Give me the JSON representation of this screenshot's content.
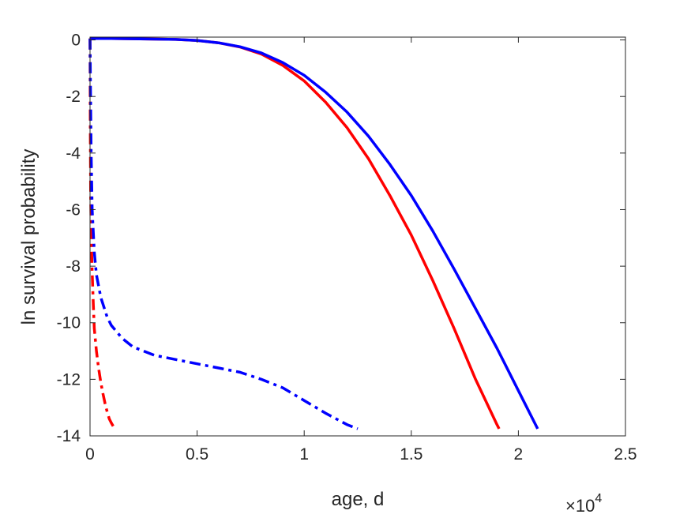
{
  "chart_data": {
    "type": "line",
    "title": "",
    "xlabel": "age, d",
    "ylabel": "ln survival probability",
    "x_exponent_label": {
      "base": "×10",
      "power": "4"
    },
    "xlim": [
      0,
      2.5
    ],
    "ylim": [
      -14,
      0.1
    ],
    "xticks": [
      0,
      0.5,
      1,
      1.5,
      2,
      2.5
    ],
    "yticks": [
      0,
      -2,
      -4,
      -6,
      -8,
      -10,
      -12,
      -14
    ],
    "grid": false,
    "legend": "none",
    "series": [
      {
        "color": "#ff0000",
        "style": "solid",
        "x": [
          0,
          0.1,
          0.2,
          0.3,
          0.4,
          0.5,
          0.6,
          0.7,
          0.8,
          0.9,
          1.0,
          1.1,
          1.2,
          1.3,
          1.4,
          1.5,
          1.6,
          1.7,
          1.8,
          1.9,
          1.91
        ],
        "y": [
          0.05,
          0.05,
          0.04,
          0.03,
          0.02,
          -0.02,
          -0.1,
          -0.25,
          -0.5,
          -0.9,
          -1.45,
          -2.2,
          -3.1,
          -4.2,
          -5.5,
          -6.9,
          -8.5,
          -10.2,
          -12.0,
          -13.6,
          -13.75
        ]
      },
      {
        "color": "#0000ff",
        "style": "solid",
        "x": [
          0,
          0.1,
          0.2,
          0.3,
          0.4,
          0.5,
          0.6,
          0.7,
          0.8,
          0.9,
          1.0,
          1.1,
          1.2,
          1.3,
          1.4,
          1.5,
          1.6,
          1.7,
          1.8,
          1.9,
          2.0,
          2.09
        ],
        "y": [
          0.05,
          0.05,
          0.04,
          0.03,
          0.02,
          -0.02,
          -0.1,
          -0.24,
          -0.46,
          -0.8,
          -1.25,
          -1.85,
          -2.55,
          -3.4,
          -4.4,
          -5.5,
          -6.75,
          -8.1,
          -9.5,
          -10.9,
          -12.4,
          -13.75
        ]
      },
      {
        "color": "#ff0000",
        "style": "dashdot",
        "x": [
          0.0,
          0.001,
          0.003,
          0.006,
          0.01,
          0.015,
          0.02,
          0.03,
          0.04,
          0.05,
          0.06,
          0.07,
          0.08,
          0.09,
          0.1,
          0.11,
          0.12
        ],
        "y": [
          0.05,
          -3.0,
          -5.5,
          -7.0,
          -8.2,
          -9.3,
          -10.2,
          -11.0,
          -11.6,
          -12.1,
          -12.5,
          -12.85,
          -13.15,
          -13.4,
          -13.55,
          -13.68,
          -13.75
        ]
      },
      {
        "color": "#0000ff",
        "style": "dashdot",
        "x": [
          0.0,
          0.002,
          0.005,
          0.01,
          0.02,
          0.03,
          0.05,
          0.08,
          0.1,
          0.15,
          0.2,
          0.3,
          0.4,
          0.5,
          0.6,
          0.7,
          0.8,
          0.9,
          1.0,
          1.1,
          1.2,
          1.25
        ],
        "y": [
          0.05,
          -1.5,
          -4.0,
          -6.0,
          -7.5,
          -8.3,
          -9.1,
          -9.8,
          -10.1,
          -10.55,
          -10.85,
          -11.15,
          -11.3,
          -11.45,
          -11.6,
          -11.75,
          -12.0,
          -12.3,
          -12.75,
          -13.2,
          -13.6,
          -13.75
        ]
      }
    ]
  }
}
